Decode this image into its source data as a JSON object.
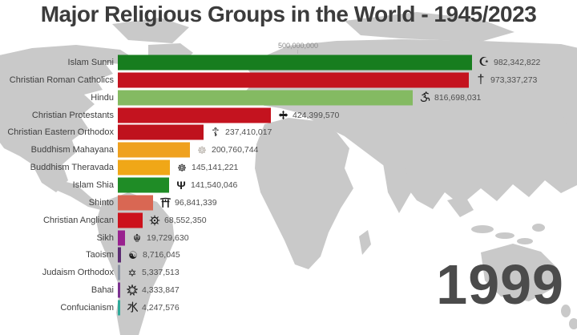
{
  "header": {
    "title": "Major Religious Groups in the World - 1945/2023"
  },
  "axis": {
    "reference_label": "500,000,000"
  },
  "year_display": "1999",
  "colors": {
    "map_land": "#c9c9c9",
    "background": "#ffffff",
    "title_text": "#3c3c3c",
    "year_text": "#4b4b4b",
    "value_text": "#4f4f4f"
  },
  "chart_data": {
    "type": "bar",
    "orientation": "horizontal",
    "title": "Major Religious Groups in the World - 1945/2023",
    "year": "1999",
    "x_axis": {
      "reference_value": 500000000,
      "reference_label": "500,000,000"
    },
    "legend": "none",
    "grid": "single reference tick at 500,000,000",
    "series": [
      {
        "name": "Islam Sunni",
        "value": 982342822,
        "label": "982,342,822",
        "color": "#177d1f",
        "icon": "star-and-crescent"
      },
      {
        "name": "Christian Roman Catholics",
        "value": 973337273,
        "label": "973,337,273",
        "color": "#c4131f",
        "icon": "latin-cross"
      },
      {
        "name": "Hindu",
        "value": 816698031,
        "label": "816,698,031",
        "color": "#84ba62",
        "icon": "om"
      },
      {
        "name": "Christian Protestants",
        "value": 424399570,
        "label": "424,399,570",
        "color": "#c4131f",
        "icon": "flared-cross"
      },
      {
        "name": "Christian Eastern Orthodox",
        "value": 237410017,
        "label": "237,410,017",
        "color": "#bf121d",
        "icon": "orthodox-cross"
      },
      {
        "name": "Buddhism Mahayana",
        "value": 200760744,
        "label": "200,760,744",
        "color": "#efa11f",
        "icon": "dharma-wheel-light"
      },
      {
        "name": "Buddhism Theravada",
        "value": 145141221,
        "label": "145,141,221",
        "color": "#f0a717",
        "icon": "dharma-wheel"
      },
      {
        "name": "Islam Shia",
        "value": 141540046,
        "label": "141,540,046",
        "color": "#1f8c26",
        "icon": "alam"
      },
      {
        "name": "Shinto",
        "value": 96841339,
        "label": "96,841,339",
        "color": "#d96753",
        "icon": "torii-gate"
      },
      {
        "name": "Christian Anglican",
        "value": 68552350,
        "label": "68,552,350",
        "color": "#cc121c",
        "icon": "compass-rose"
      },
      {
        "name": "Sikh",
        "value": 19729630,
        "label": "19,729,630",
        "color": "#99218f",
        "icon": "khanda"
      },
      {
        "name": "Taoism",
        "value": 8716045,
        "label": "8,716,045",
        "color": "#5c2b72",
        "icon": "yin-yang"
      },
      {
        "name": "Judaism Orthodox",
        "value": 5337513,
        "label": "5,337,513",
        "color": "#8d95a3",
        "icon": "star-of-david"
      },
      {
        "name": "Bahai",
        "value": 4333847,
        "label": "4,333,847",
        "color": "#7c3391",
        "icon": "nine-pointed-star"
      },
      {
        "name": "Confucianism",
        "value": 4247576,
        "label": "4,247,576",
        "color": "#2fa99a",
        "icon": "water-ideogram"
      }
    ]
  }
}
